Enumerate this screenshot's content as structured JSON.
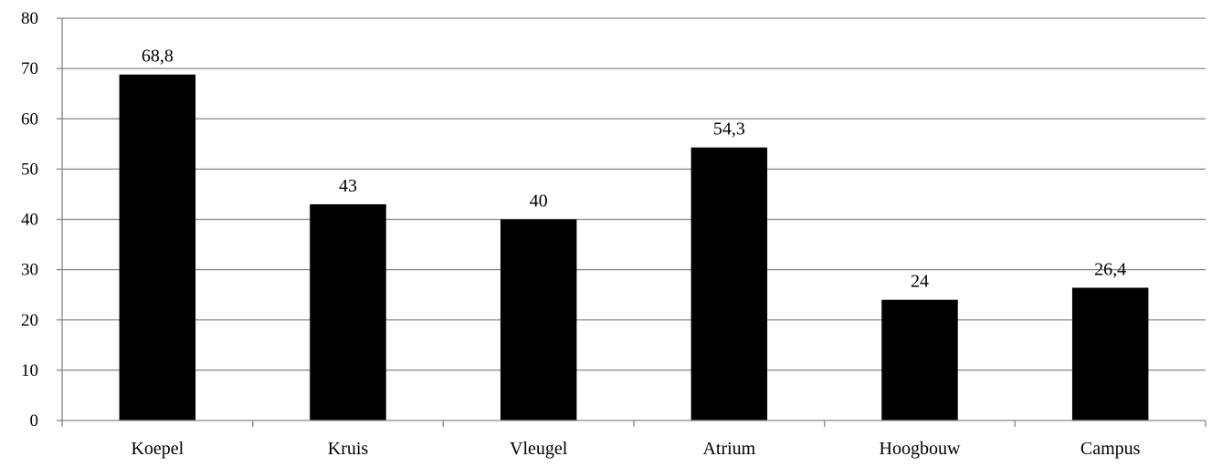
{
  "chart_data": {
    "type": "bar",
    "categories": [
      "Koepel",
      "Kruis",
      "Vleugel",
      "Atrium",
      "Hoogbouw",
      "Campus"
    ],
    "values": [
      68.8,
      43,
      40,
      54.3,
      24,
      26.4
    ],
    "data_labels": [
      "68,8",
      "43",
      "40",
      "54,3",
      "24",
      "26,4"
    ],
    "ylim": [
      0,
      80
    ],
    "yticks": [
      0,
      10,
      20,
      30,
      40,
      50,
      60,
      70,
      80
    ],
    "grid": true,
    "legend": "none",
    "bar_color": "#000000",
    "grid_color": "#868686"
  }
}
